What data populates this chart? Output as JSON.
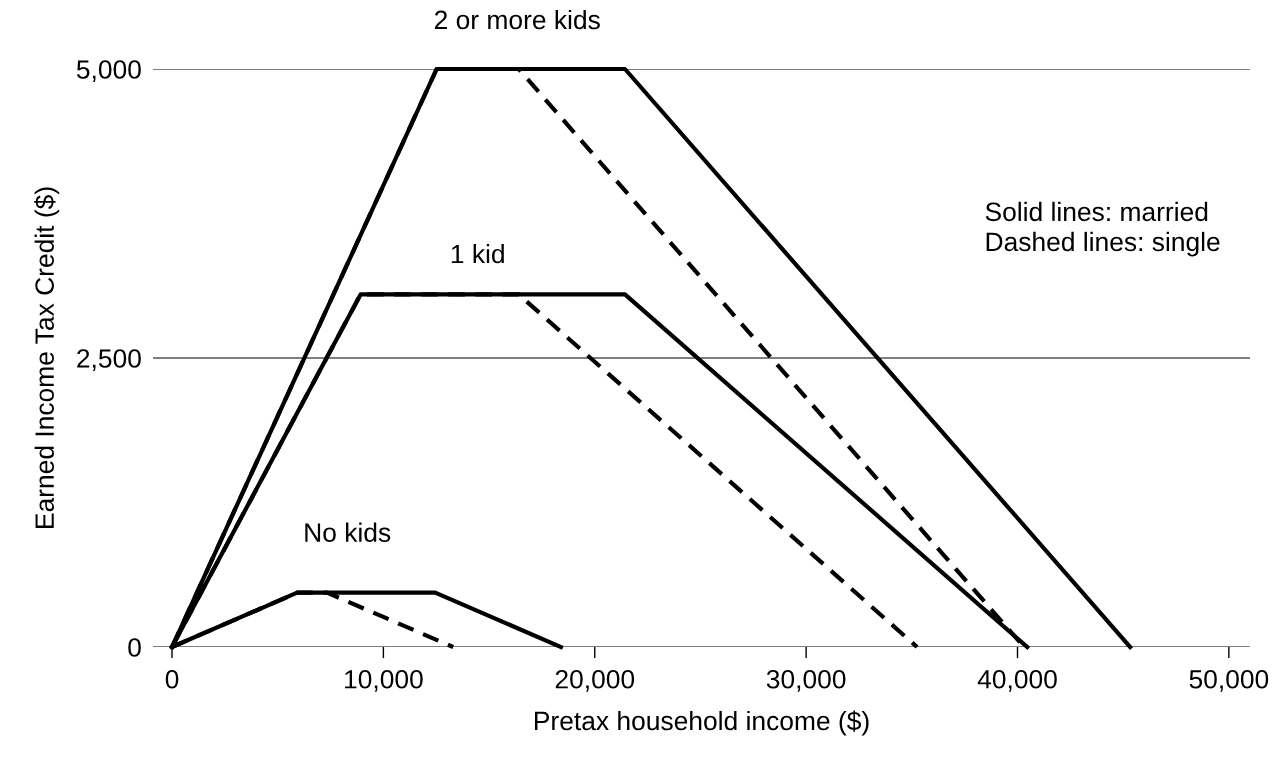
{
  "chart_data": {
    "type": "line",
    "xlabel": "Pretax household income ($)",
    "ylabel": "Earned Income Tax Credit ($)",
    "xlim": [
      -900,
      51000
    ],
    "ylim": [
      0,
      5000
    ],
    "xticks": [
      {
        "value": 0,
        "label": "0"
      },
      {
        "value": 10000,
        "label": "10,000"
      },
      {
        "value": 20000,
        "label": "20,000"
      },
      {
        "value": 30000,
        "label": "30,000"
      },
      {
        "value": 40000,
        "label": "40,000"
      },
      {
        "value": 50000,
        "label": "50,000"
      }
    ],
    "yticks": [
      {
        "value": 0,
        "label": "0"
      },
      {
        "value": 2500,
        "label": "2,500"
      },
      {
        "value": 5000,
        "label": "5,000"
      }
    ],
    "grid": "y",
    "marker": "none",
    "series": [
      {
        "color": "#000000",
        "line_style": "solid",
        "x": [
          0,
          12520,
          21430,
          45330
        ],
        "values": [
          0,
          5000,
          5000,
          0
        ]
      },
      {
        "color": "#000000",
        "line_style": "dashed",
        "x": [
          0,
          12520,
          16400,
          40310
        ],
        "values": [
          0,
          5000,
          5000,
          0
        ]
      },
      {
        "color": "#000000",
        "line_style": "solid",
        "x": [
          0,
          8920,
          21430,
          40460
        ],
        "values": [
          0,
          3050,
          3050,
          0
        ]
      },
      {
        "color": "#000000",
        "line_style": "dashed",
        "x": [
          0,
          8920,
          16400,
          35250
        ],
        "values": [
          0,
          3050,
          3050,
          0
        ]
      },
      {
        "color": "#000000",
        "line_style": "solid",
        "x": [
          0,
          5920,
          12450,
          18400
        ],
        "values": [
          0,
          470,
          470,
          0
        ]
      },
      {
        "color": "#000000",
        "line_style": "dashed",
        "x": [
          0,
          5920,
          7330,
          13300
        ],
        "values": [
          0,
          470,
          470,
          0
        ]
      }
    ],
    "annotations": [
      "2 or more kids",
      "1 kid",
      "No kids",
      "Solid lines: married",
      "Dashed lines: single"
    ]
  }
}
